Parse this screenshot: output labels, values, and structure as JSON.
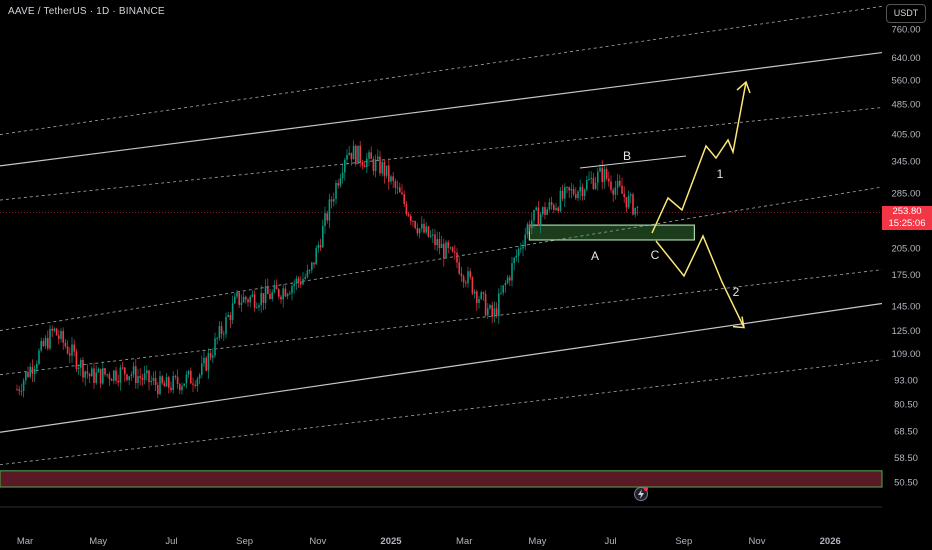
{
  "header": {
    "title": "AAVE / TetherUS · 1D · BINANCE",
    "currency": "USDT"
  },
  "last_price": {
    "value": "253.80",
    "countdown": "15:25:06"
  },
  "chart_data": {
    "type": "line",
    "scale": "log",
    "y_ticks": [
      "760.00",
      "640.00",
      "560.00",
      "485.00",
      "405.00",
      "345.00",
      "285.00",
      "205.00",
      "175.00",
      "145.00",
      "125.00",
      "109.00",
      "93.00",
      "80.50",
      "68.50",
      "58.50",
      "50.50"
    ],
    "x_ticks": [
      "Mar",
      "May",
      "Jul",
      "Sep",
      "Nov",
      "2025",
      "Mar",
      "May",
      "Jul",
      "Sep",
      "Nov",
      "2026"
    ],
    "x_bold_ticks": [
      "2025",
      "2026"
    ],
    "price_series": {
      "name": "",
      "x": [
        "2024-03",
        "2024-04",
        "2024-05",
        "2024-06",
        "2024-07",
        "2024-08",
        "2024-09",
        "2024-10",
        "2024-11",
        "2024-12",
        "2025-01",
        "2025-02",
        "2025-03",
        "2025-04",
        "2025-05",
        "2025-06",
        "2025-07",
        "2025-08"
      ],
      "y": [
        88,
        125,
        95,
        98,
        89,
        96,
        150,
        155,
        175,
        370,
        330,
        230,
        190,
        135,
        240,
        280,
        320,
        253.8
      ]
    },
    "wave_labels": [
      "A",
      "B",
      "C",
      "1",
      "2"
    ],
    "scenario_1_target": 560,
    "scenario_2_target": 125,
    "support_zone": [
      215,
      235
    ],
    "bottom_zone": [
      49,
      54
    ],
    "colors": {
      "candle_up": "#089981",
      "candle_down": "#f23645",
      "scenario": "#fce777",
      "zone": "#4caf50",
      "bottom_zone": "#5a1a25",
      "price_tag": "#f23645"
    },
    "icons": [
      "lightning-icon"
    ]
  }
}
